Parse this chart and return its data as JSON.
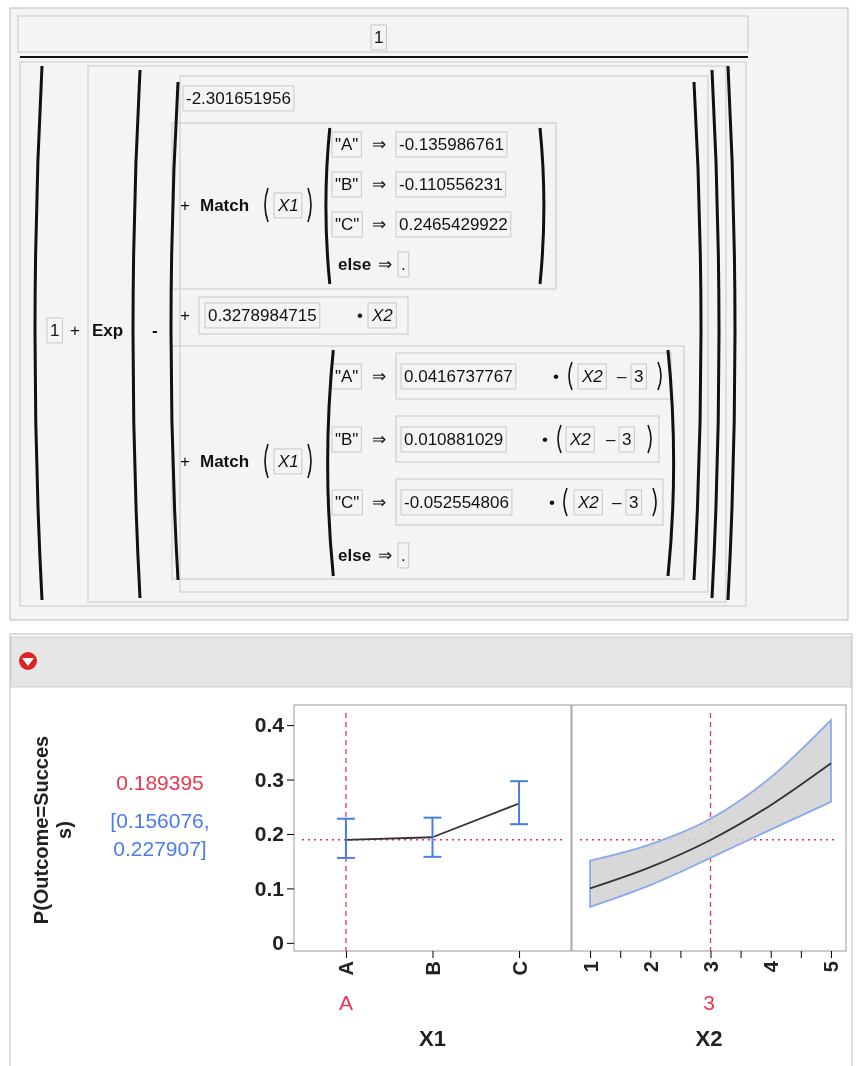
{
  "chart_data": [
    {
      "type": "other",
      "annotations": [
        "1",
        "1",
        "+",
        "Exp",
        "-",
        "-2.301651956",
        "+",
        "Match",
        "X1",
        "\"A\"",
        "⇒",
        "-0.135986761",
        "\"B\"",
        "⇒",
        "-0.110556231",
        "\"C\"",
        "⇒",
        "0.2465429922",
        "else",
        "⇒",
        ".",
        "+",
        "0.3278984715",
        "•",
        "X2",
        "+",
        "Match",
        "X1",
        "\"A\"",
        "⇒",
        "0.0416737767",
        "•",
        "X2",
        "–",
        "3",
        "\"B\"",
        "⇒",
        "0.010881029",
        "•",
        "X2",
        "–",
        "3",
        "\"C\"",
        "⇒",
        "-0.052554806",
        "•",
        "X2",
        "–",
        "3",
        "else",
        "⇒",
        "."
      ]
    },
    {
      "type": "line",
      "categories": [
        "A",
        "B",
        "C"
      ],
      "xlabel": "X1",
      "ylabel": "P(Outcome=Success)",
      "series": [
        {
          "color": "#333333",
          "values": [
            0.189,
            0.194,
            0.256
          ],
          "errors": [
            [
              0.156,
              0.228
            ],
            [
              0.158,
              0.23
            ],
            [
              0.218,
              0.297
            ]
          ]
        }
      ],
      "ylim": [
        -0.015,
        0.437
      ],
      "yticks": [
        0,
        0.1,
        0.2,
        0.3,
        0.4
      ],
      "ref_lines": [
        {
          "axis": "x",
          "value": "A",
          "color": "#e8384f",
          "line_style": "dashed"
        },
        {
          "axis": "y",
          "value": 0.189395,
          "color": "#e8384f",
          "line_style": "dotted"
        }
      ],
      "annotations": [
        "0.189395",
        "[0.156076, 0.227907]",
        "A"
      ]
    },
    {
      "type": "line",
      "x": [
        1,
        2,
        3,
        4,
        5
      ],
      "xlabel": "X2",
      "series": [
        {
          "color": "#333333",
          "values": [
            0.1,
            0.139,
            0.189,
            0.253,
            0.33
          ],
          "lower": [
            0.066,
            0.106,
            0.156,
            0.208,
            0.259
          ],
          "upper": [
            0.151,
            0.181,
            0.228,
            0.304,
            0.409
          ]
        }
      ],
      "xlim": [
        0.7,
        5.25
      ],
      "xticks": [
        1,
        {
          "value": 1.5,
          "label": null
        },
        2,
        {
          "value": 2.5,
          "label": null
        },
        3,
        {
          "value": 3.5,
          "label": null
        },
        4,
        {
          "value": 4.5,
          "label": null
        },
        5
      ],
      "ylim": [
        -0.015,
        0.437
      ],
      "yticks": [
        0,
        0.1,
        0.2,
        0.3,
        0.4
      ],
      "tick_labels": "x",
      "ref_lines": [
        {
          "axis": "x",
          "value": 3,
          "color": "#e8384f",
          "line_style": "dashed"
        },
        {
          "axis": "y",
          "value": 0.189395,
          "color": "#e8384f",
          "line_style": "dotted"
        }
      ],
      "annotations": [
        "3"
      ]
    }
  ]
}
